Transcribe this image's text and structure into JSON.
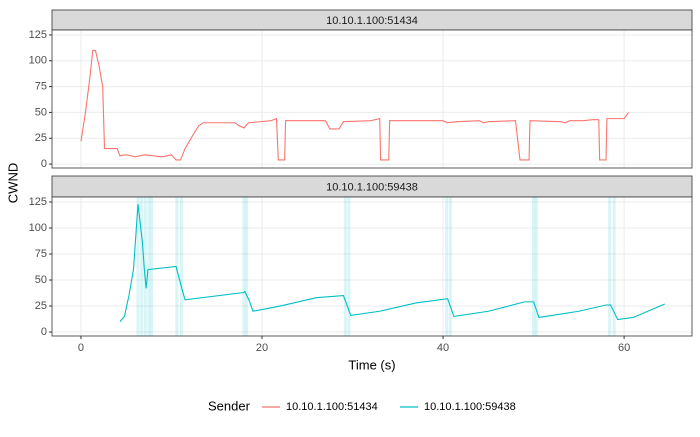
{
  "chart_data": {
    "type": "line",
    "xlabel": "Time (s)",
    "ylabel": "CWND",
    "legend_title": "Sender",
    "legend_position": "bottom",
    "grid": true,
    "xlim": [
      -3.2,
      67.5
    ],
    "xticks": [
      0,
      20,
      40,
      60
    ],
    "ylim": [
      -3.8,
      129.8
    ],
    "yticks": [
      0,
      25,
      50,
      75,
      100,
      125
    ],
    "series": [
      {
        "name": "10.10.1.100:51434",
        "color": "#F8766D",
        "x": [
          0,
          0.5,
          1,
          1.3,
          1.6,
          2,
          2.4,
          2.6,
          4,
          4.3,
          5,
          6,
          7,
          8,
          9,
          10,
          10.5,
          11,
          11.5,
          12.5,
          13,
          13.5,
          17,
          17.5,
          18,
          18.5,
          21,
          21.6,
          21.8,
          22.5,
          22.6,
          27,
          27.5,
          28.5,
          29,
          32,
          33,
          33.1,
          34,
          34.1,
          40,
          40.5,
          41.5,
          44,
          44.5,
          45,
          48,
          48.5,
          49.5,
          49.6,
          53,
          53.5,
          54,
          55.5,
          56.5,
          57.2,
          57.3,
          58,
          58.1,
          60,
          60.5
        ],
        "values": [
          22,
          50,
          85,
          110,
          110,
          95,
          75,
          15,
          15,
          8,
          9,
          7,
          9,
          8,
          7,
          9,
          4,
          4,
          15,
          30,
          37,
          40,
          40,
          37,
          35,
          40,
          42,
          44,
          4,
          4,
          42,
          42,
          34,
          34,
          41,
          42,
          44,
          4,
          4,
          42,
          42,
          40,
          41,
          42,
          40,
          41,
          42,
          4,
          4,
          42,
          41,
          40,
          42,
          42,
          43,
          43,
          4,
          4,
          44,
          44,
          50
        ],
        "events": []
      },
      {
        "name": "10.10.1.100:59438",
        "color": "#00BFC4",
        "x": [
          4.3,
          4.8,
          5.3,
          5.8,
          6.3,
          6.8,
          7.0,
          7.2,
          7.4,
          10.5,
          11.2,
          11.5,
          18,
          18.1,
          18.6,
          19,
          22,
          26,
          29,
          29.8,
          33,
          37,
          40.5,
          41.2,
          45,
          49,
          50,
          50.6,
          55,
          58,
          58.5,
          59.3,
          61,
          64.5
        ],
        "values": [
          10,
          15,
          35,
          60,
          123,
          85,
          60,
          42,
          60,
          63,
          40,
          31,
          38,
          39,
          30,
          20,
          25,
          33,
          35,
          16,
          20,
          28,
          32,
          15,
          20,
          29,
          29,
          14,
          20,
          26,
          26,
          12,
          14,
          27
        ],
        "events": [
          6.3,
          6.7,
          7.1,
          7.5,
          7.8,
          10.6,
          11.1,
          18,
          18.3,
          29.2,
          29.6,
          40.4,
          40.8,
          50,
          50.3,
          58.4,
          58.9
        ]
      }
    ]
  }
}
